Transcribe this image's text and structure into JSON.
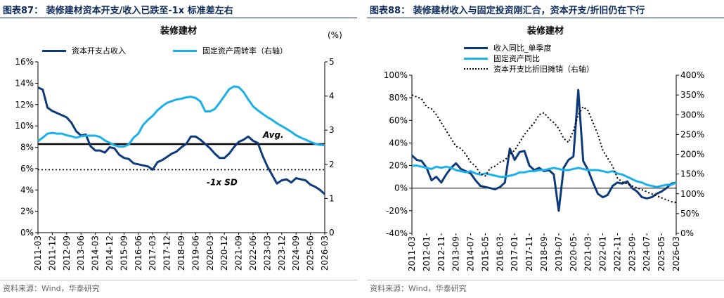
{
  "source_note": "资料来源：Wind，华泰研究",
  "charts": [
    {
      "figure_title": "图表87：  装修建材资本开支/收入已跌至-1x 标准差左右",
      "chart_data": {
        "type": "line",
        "title": "装修建材",
        "right_axis_label": "(%)",
        "x_tick_labels": [
          "2011-03",
          "2011-12",
          "2012-09",
          "2013-06",
          "2014-03",
          "2014-12",
          "2015-09",
          "2016-06",
          "2017-03",
          "2017-12",
          "2018-09",
          "2019-06",
          "2020-03",
          "2020-12",
          "2021-09",
          "2022-06",
          "2023-03",
          "2023-12",
          "2024-09",
          "2025-06",
          "2026-03"
        ],
        "y_left": {
          "min": 0,
          "max": 16,
          "step": 2,
          "format": "percent"
        },
        "y_right": {
          "min": 0,
          "max": 5,
          "step": 1
        },
        "reference_lines": [
          {
            "name": "Avg.",
            "value": 8.3,
            "axis": "left",
            "style": "solid"
          },
          {
            "name": "-1x SD",
            "value": 5.9,
            "axis": "left",
            "style": "dotted"
          }
        ],
        "series": [
          {
            "name": "资本开支占收入",
            "axis": "left",
            "color": "#0d3a7a",
            "values": [
              13.6,
              13.4,
              11.7,
              11.4,
              11.2,
              11.0,
              10.8,
              10.3,
              9.5,
              9.1,
              9.2,
              8.1,
              7.7,
              7.7,
              7.5,
              8.0,
              7.9,
              7.3,
              7.0,
              6.9,
              6.5,
              6.4,
              6.3,
              6.2,
              5.9,
              6.6,
              6.8,
              7.1,
              7.4,
              7.6,
              8.0,
              8.3,
              9.0,
              9.0,
              8.7,
              8.3,
              7.9,
              7.4,
              7.0,
              7.0,
              7.4,
              8.0,
              8.5,
              8.7,
              9.0,
              8.6,
              8.4,
              7.2,
              6.2,
              5.4,
              4.6,
              4.9,
              5.0,
              4.7,
              5.1,
              5.0,
              4.9,
              4.5,
              4.3,
              4.0,
              3.6
            ]
          },
          {
            "name": "固定资产周转率（右轴）",
            "axis": "right",
            "color": "#1ab0ea",
            "values": [
              2.68,
              2.78,
              2.9,
              2.92,
              2.9,
              2.9,
              2.85,
              2.82,
              2.78,
              2.82,
              2.84,
              2.84,
              2.84,
              2.8,
              2.7,
              2.63,
              2.56,
              2.52,
              2.52,
              2.58,
              2.78,
              2.9,
              3.15,
              3.3,
              3.42,
              3.58,
              3.7,
              3.8,
              3.85,
              3.9,
              3.92,
              3.96,
              3.98,
              3.94,
              3.84,
              3.55,
              3.55,
              3.62,
              3.8,
              4.0,
              4.2,
              4.28,
              4.26,
              4.12,
              3.9,
              3.7,
              3.58,
              3.48,
              3.38,
              3.3,
              3.2,
              3.12,
              3.04,
              2.95,
              2.85,
              2.78,
              2.72,
              2.66,
              2.6,
              2.57,
              2.56
            ]
          }
        ]
      }
    },
    {
      "figure_title": "图表88：  装修建材收入与固定投资刚汇合，资本开支/折旧仍在下行",
      "chart_data": {
        "type": "line",
        "title": "装修建材",
        "x_tick_labels": [
          "2011-03",
          "2012-01",
          "2012-11",
          "2013-09",
          "2014-07",
          "2015-05",
          "2016-03",
          "2017-01",
          "2017-11",
          "2018-09",
          "2019-07",
          "2020-05",
          "2021-03",
          "2022-01",
          "2022-11",
          "2023-09",
          "2024-07",
          "2025-05",
          "2026-03"
        ],
        "y_left": {
          "min": -40,
          "max": 100,
          "step": 20,
          "format": "percent"
        },
        "y_right": {
          "min": 0,
          "max": 400,
          "step": 50,
          "format": "percent"
        },
        "series": [
          {
            "name": "收入同比_单季度",
            "axis": "left",
            "color": "#0d3a7a",
            "style": "solid",
            "values": [
              29,
              25,
              24,
              18,
              7,
              10,
              5,
              12,
              18,
              22,
              17,
              15,
              13,
              7,
              2,
              1,
              0,
              -1,
              1,
              5,
              35,
              25,
              32,
              33,
              20,
              16,
              18,
              15,
              16,
              12,
              -20,
              18,
              25,
              28,
              87,
              24,
              16,
              5,
              -5,
              -8,
              -6,
              2,
              5,
              4,
              6,
              0,
              -3,
              -8,
              -9,
              -8,
              -5,
              -3,
              0,
              4,
              5
            ]
          },
          {
            "name": "固定资产同比",
            "axis": "left",
            "color": "#1ab0ea",
            "style": "solid",
            "values": [
              20,
              20,
              19,
              18,
              17,
              19,
              18,
              19,
              18,
              16,
              15,
              14,
              15,
              13,
              12,
              13,
              12,
              11,
              10,
              10,
              11,
              12,
              14,
              14,
              15,
              15,
              16,
              16,
              17,
              18,
              17,
              16,
              16,
              17,
              18,
              17,
              16,
              16,
              16,
              15,
              14,
              15,
              13,
              12,
              10,
              8,
              6,
              5,
              3,
              2,
              1,
              2,
              3,
              3,
              5
            ]
          },
          {
            "name": "资本开支比折旧摊销（右轴）",
            "axis": "right",
            "color": "#000000",
            "style": "dotted",
            "values": [
              350,
              345,
              340,
              320,
              315,
              300,
              280,
              260,
              240,
              220,
              215,
              200,
              180,
              170,
              150,
              145,
              165,
              170,
              180,
              185,
              200,
              210,
              230,
              250,
              265,
              280,
              300,
              305,
              290,
              280,
              265,
              240,
              230,
              260,
              300,
              320,
              310,
              280,
              250,
              210,
              190,
              170,
              140,
              130,
              125,
              120,
              115,
              110,
              105,
              100,
              95,
              90,
              85,
              80,
              78
            ]
          }
        ]
      }
    }
  ]
}
